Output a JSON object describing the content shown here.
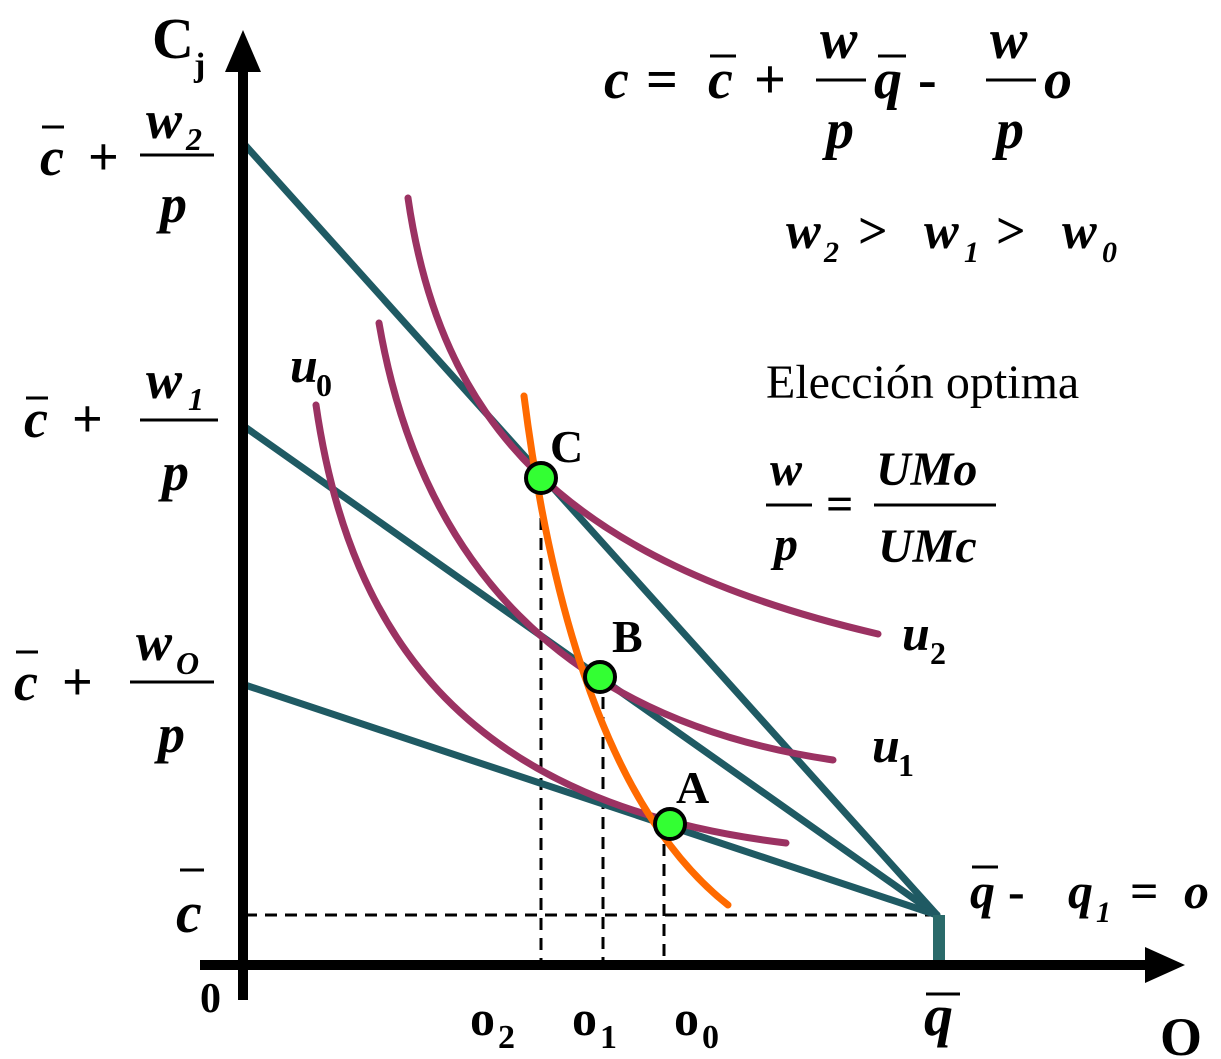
{
  "axes": {
    "y_label": "C",
    "y_label_sub": "j",
    "x_label": "O",
    "origin": "0"
  },
  "y_ticks": {
    "cbar": "c",
    "plus": "+",
    "w2_num": "w",
    "w2_sub": "2",
    "w1_num": "w",
    "w1_sub": "1",
    "w0_num": "w",
    "w0_sub": "O",
    "den": "p"
  },
  "x_ticks": {
    "o2": "o",
    "o2_sub": "2",
    "o1": "o",
    "o1_sub": "1",
    "o0": "o",
    "o0_sub": "0",
    "qbar": "q"
  },
  "equation": {
    "c": "c",
    "eq": "=",
    "cbar": "c",
    "plus": "+",
    "w": "w",
    "p": "p",
    "qbar": "q",
    "minus": "-",
    "o": "o"
  },
  "inequality": {
    "w2": "w",
    "w2_sub": "2",
    "gt1": ">",
    "w1": "w",
    "w1_sub": "1",
    "gt2": ">",
    "w0": "w",
    "w0_sub": "0"
  },
  "optimal": {
    "title": "Elección optima",
    "lhs_num": "w",
    "lhs_den": "p",
    "eq": "=",
    "rhs_num": "UMo",
    "rhs_den": "UMc"
  },
  "curves": {
    "u0": "u",
    "u0_sub": "0",
    "u1": "u",
    "u1_sub": "1",
    "u2": "u",
    "u2_sub": "2"
  },
  "points": {
    "A": "A",
    "B": "B",
    "C": "C"
  },
  "endpoint": {
    "qbar": "q",
    "minus": "-",
    "q1": "q",
    "q1_sub": "1",
    "eq": "=",
    "o": "o"
  },
  "colors": {
    "axis": "#000000",
    "budget_line": "#1f5a63",
    "indifference": "#9b3262",
    "offer_curve": "#ff6a00",
    "point_fill": "#33ff33",
    "dashed": "#000000"
  }
}
